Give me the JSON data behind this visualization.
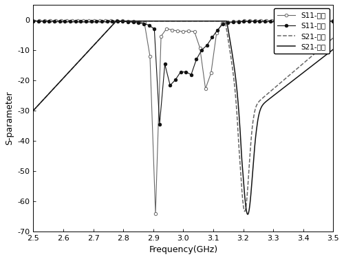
{
  "xlabel": "Frequency(GHz)",
  "ylabel": "S-parameter",
  "xlim": [
    2.5,
    3.5
  ],
  "ylim": [
    -70,
    5
  ],
  "yticks": [
    0,
    -10,
    -20,
    -30,
    -40,
    -50,
    -60,
    -70
  ],
  "xticks": [
    2.5,
    2.6,
    2.7,
    2.8,
    2.9,
    3.0,
    3.1,
    3.2,
    3.3,
    3.4,
    3.5
  ],
  "legend_labels": [
    "S11-仿真",
    "S11-測量",
    "S21-仿真",
    "S21-測量"
  ],
  "gray": "#666666",
  "dark": "#111111"
}
